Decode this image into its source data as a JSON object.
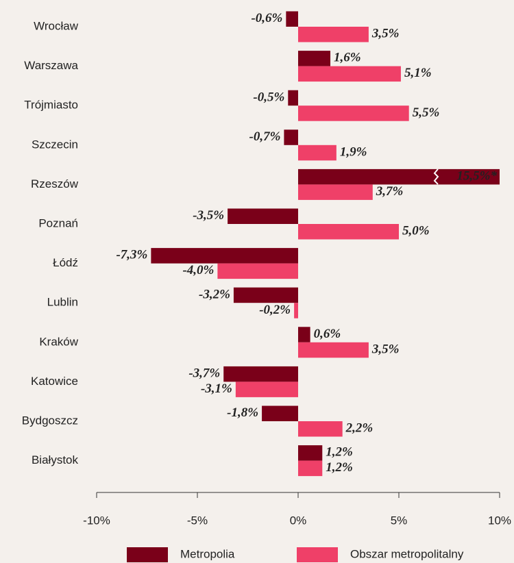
{
  "chart_data": {
    "type": "hbar",
    "categories": [
      "Wrocław",
      "Warszawa",
      "Trójmiasto",
      "Szczecin",
      "Rzeszów",
      "Poznań",
      "Łódź",
      "Lublin",
      "Kraków",
      "Katowice",
      "Bydgoszcz",
      "Białystok"
    ],
    "series": [
      {
        "name": "Metropolia",
        "color": "#7a0019",
        "values": [
          -0.6,
          1.6,
          -0.5,
          -0.7,
          15.5,
          -3.5,
          -7.3,
          -3.2,
          0.6,
          -3.7,
          -1.8,
          1.2
        ],
        "value_labels": [
          "-0,6%",
          "1,6%",
          "-0,5%",
          "-0,7%",
          "15,5%*",
          "-3,5%",
          "-7,3%",
          "-3,2%",
          "0,6%",
          "-3,7%",
          "-1,8%",
          "1,2%"
        ]
      },
      {
        "name": "Obszar metropolitalny",
        "color": "#ef4068",
        "values": [
          3.5,
          5.1,
          5.5,
          1.9,
          3.7,
          5.0,
          -4.0,
          -0.2,
          3.5,
          -3.1,
          2.2,
          1.2
        ],
        "value_labels": [
          "3,5%",
          "5,1%",
          "5,5%",
          "1,9%",
          "3,7%",
          "5,0%",
          "-4,0%",
          "-0,2%",
          "3,5%",
          "-3,1%",
          "2,2%",
          "1,2%"
        ]
      }
    ],
    "xlim": [
      -10,
      10
    ],
    "xticks": [
      {
        "value": -10,
        "label": "-10%"
      },
      {
        "value": -5,
        "label": "-5%"
      },
      {
        "value": 0,
        "label": "0%"
      },
      {
        "value": 5,
        "label": "5%"
      },
      {
        "value": 10,
        "label": "10%"
      }
    ]
  }
}
